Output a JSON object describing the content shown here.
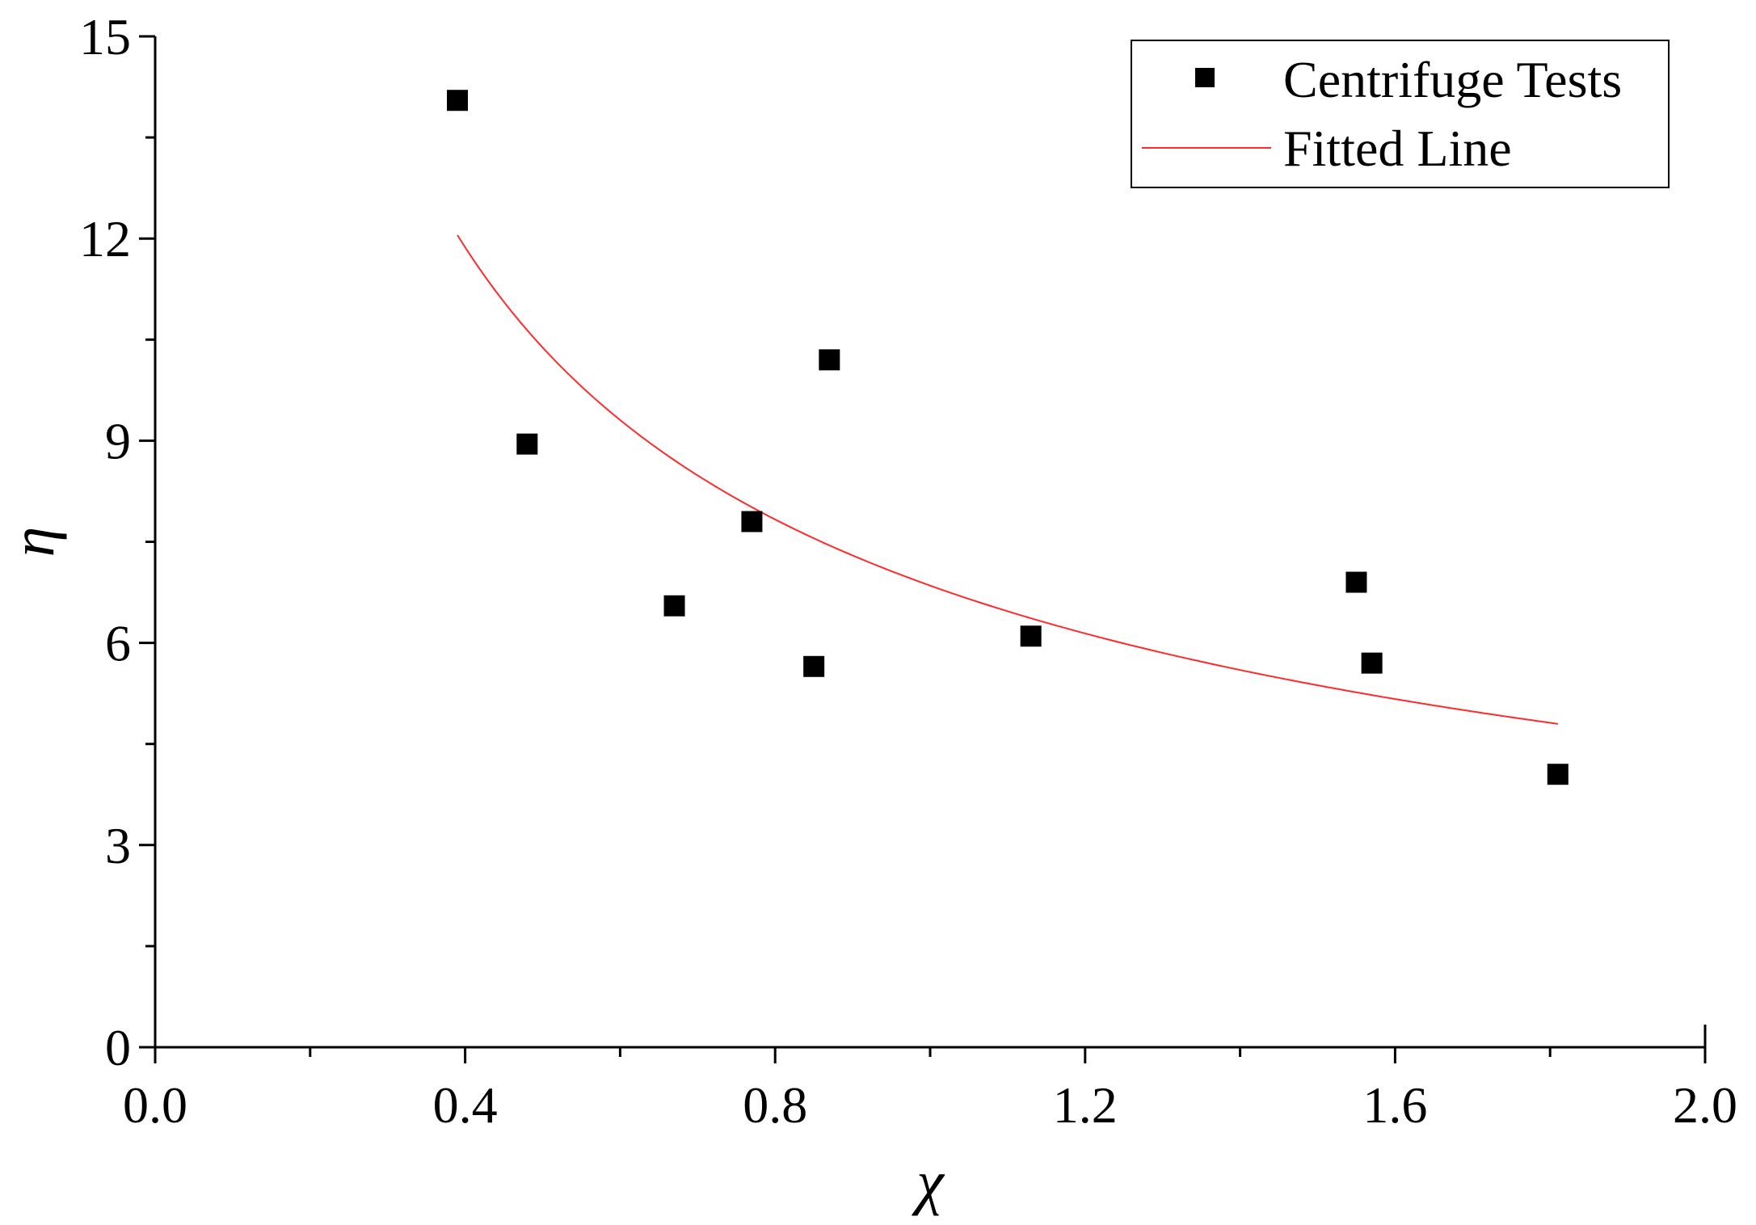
{
  "chart_data": {
    "type": "scatter",
    "title": "",
    "xlabel": "χ",
    "ylabel": "η",
    "xlim": [
      0.0,
      2.0
    ],
    "ylim": [
      0,
      15
    ],
    "grid": false,
    "legend_position": "top-right",
    "xticks": [
      {
        "value": 0.0,
        "label": "0.0"
      },
      {
        "value": 0.4,
        "label": "0.4"
      },
      {
        "value": 0.8,
        "label": "0.8"
      },
      {
        "value": 1.2,
        "label": "1.2"
      },
      {
        "value": 1.6,
        "label": "1.6"
      },
      {
        "value": 2.0,
        "label": "2.0"
      }
    ],
    "xminor": [
      0.2,
      0.6,
      1.0,
      1.4,
      1.8
    ],
    "yticks": [
      {
        "value": 0,
        "label": "0"
      },
      {
        "value": 3,
        "label": "3"
      },
      {
        "value": 6,
        "label": "6"
      },
      {
        "value": 9,
        "label": "9"
      },
      {
        "value": 12,
        "label": "12"
      },
      {
        "value": 15,
        "label": "15"
      }
    ],
    "yminor": [
      1.5,
      4.5,
      7.5,
      10.5,
      13.5
    ],
    "series": [
      {
        "name": "Centrifuge Tests",
        "kind": "scatter",
        "marker": "square",
        "color": "#000000",
        "points": [
          {
            "x": 0.39,
            "y": 14.05
          },
          {
            "x": 0.48,
            "y": 8.95
          },
          {
            "x": 0.67,
            "y": 6.55
          },
          {
            "x": 0.77,
            "y": 7.8
          },
          {
            "x": 0.85,
            "y": 5.65
          },
          {
            "x": 0.87,
            "y": 10.2
          },
          {
            "x": 1.13,
            "y": 6.1
          },
          {
            "x": 1.55,
            "y": 6.9
          },
          {
            "x": 1.57,
            "y": 5.7
          },
          {
            "x": 1.81,
            "y": 4.05
          }
        ]
      },
      {
        "name": "Fitted Line",
        "kind": "line",
        "color": "#ff2a2a",
        "function": "power",
        "a": 6.85,
        "b": -0.6,
        "x_start": 0.39,
        "x_end": 1.81
      }
    ]
  }
}
